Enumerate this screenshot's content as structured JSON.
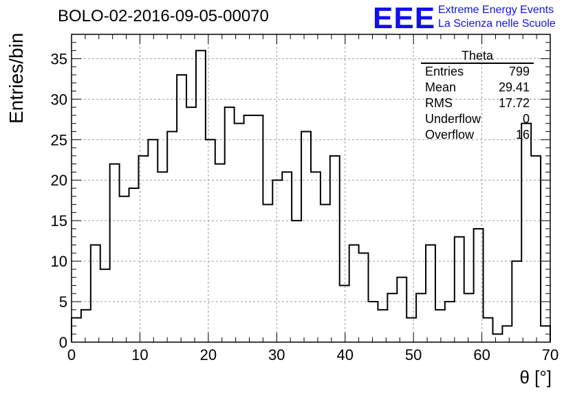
{
  "title": "BOLO-02-2016-09-05-00070",
  "logo": {
    "mark": "EEE",
    "line1": "Extreme Energy Events",
    "line2": "La Scienza nelle Scuole"
  },
  "stats": {
    "title": "Theta",
    "rows": [
      {
        "label": "Entries",
        "value": "799"
      },
      {
        "label": "Mean",
        "value": "29.41"
      },
      {
        "label": "RMS",
        "value": "17.72"
      },
      {
        "label": "Underflow",
        "value": "0"
      },
      {
        "label": "Overflow",
        "value": "16"
      }
    ]
  },
  "chart_data": {
    "type": "histogram",
    "title": "BOLO-02-2016-09-05-00070",
    "xlabel": "θ [°]",
    "ylabel": "Entries/bin",
    "xlim": [
      0,
      70
    ],
    "ylim": [
      0,
      38
    ],
    "bin_width": 1.4,
    "x_ticks": [
      0,
      10,
      20,
      30,
      40,
      50,
      60,
      70
    ],
    "y_ticks": [
      0,
      5,
      10,
      15,
      20,
      25,
      30,
      35
    ],
    "grid": true,
    "line_color": "#000000",
    "values": [
      3,
      4,
      12,
      9,
      22,
      18,
      19,
      23,
      25,
      21,
      26,
      33,
      29,
      36,
      25,
      22,
      29,
      27,
      28,
      28,
      17,
      20,
      21,
      15,
      26,
      21,
      17,
      23,
      7,
      12,
      11,
      5,
      4,
      6,
      8,
      3,
      6,
      12,
      4,
      5,
      13,
      6,
      14,
      3,
      1,
      2,
      10,
      27,
      23,
      2
    ]
  }
}
